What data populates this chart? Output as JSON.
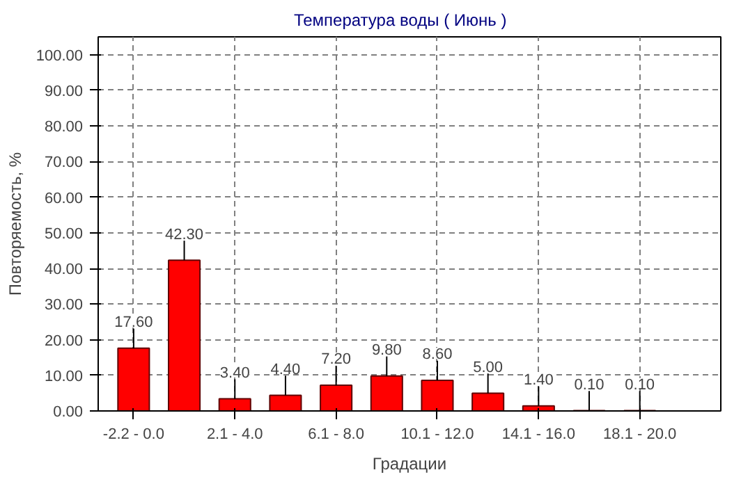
{
  "chart_data": {
    "type": "bar",
    "title": "Температура воды     ( Июнь )",
    "xlabel": "Градации",
    "ylabel": "Повторяемость, %",
    "categories": [
      "-2.2 - 0.0",
      null,
      "2.1 - 4.0",
      null,
      "6.1 - 8.0",
      null,
      "10.1 - 12.0",
      null,
      "14.1 - 16.0",
      null,
      "18.1 - 20.0"
    ],
    "series": [
      {
        "color": "#ff0000",
        "values": [
          17.6,
          42.3,
          3.4,
          4.4,
          7.2,
          9.8,
          8.6,
          5.0,
          1.4,
          0.1,
          0.1
        ],
        "value_labels": [
          "17.60",
          "42.30",
          "3.40",
          "4.40",
          "7.20",
          "9.80",
          "8.60",
          "5.00",
          "1.40",
          "0.10",
          "0.10"
        ]
      }
    ],
    "ylim": [
      0,
      105
    ],
    "yticks": [
      {
        "value": 0,
        "label": "0.00"
      },
      {
        "value": 10,
        "label": "10.00"
      },
      {
        "value": 20,
        "label": "20.00"
      },
      {
        "value": 30,
        "label": "30.00"
      },
      {
        "value": 40,
        "label": "40.00"
      },
      {
        "value": 50,
        "label": "50.00"
      },
      {
        "value": 60,
        "label": "60.00"
      },
      {
        "value": 70,
        "label": "70.00"
      },
      {
        "value": 80,
        "label": "80.00"
      },
      {
        "value": 90,
        "label": "90.00"
      },
      {
        "value": 100,
        "label": "100.00"
      }
    ],
    "grid": true
  }
}
